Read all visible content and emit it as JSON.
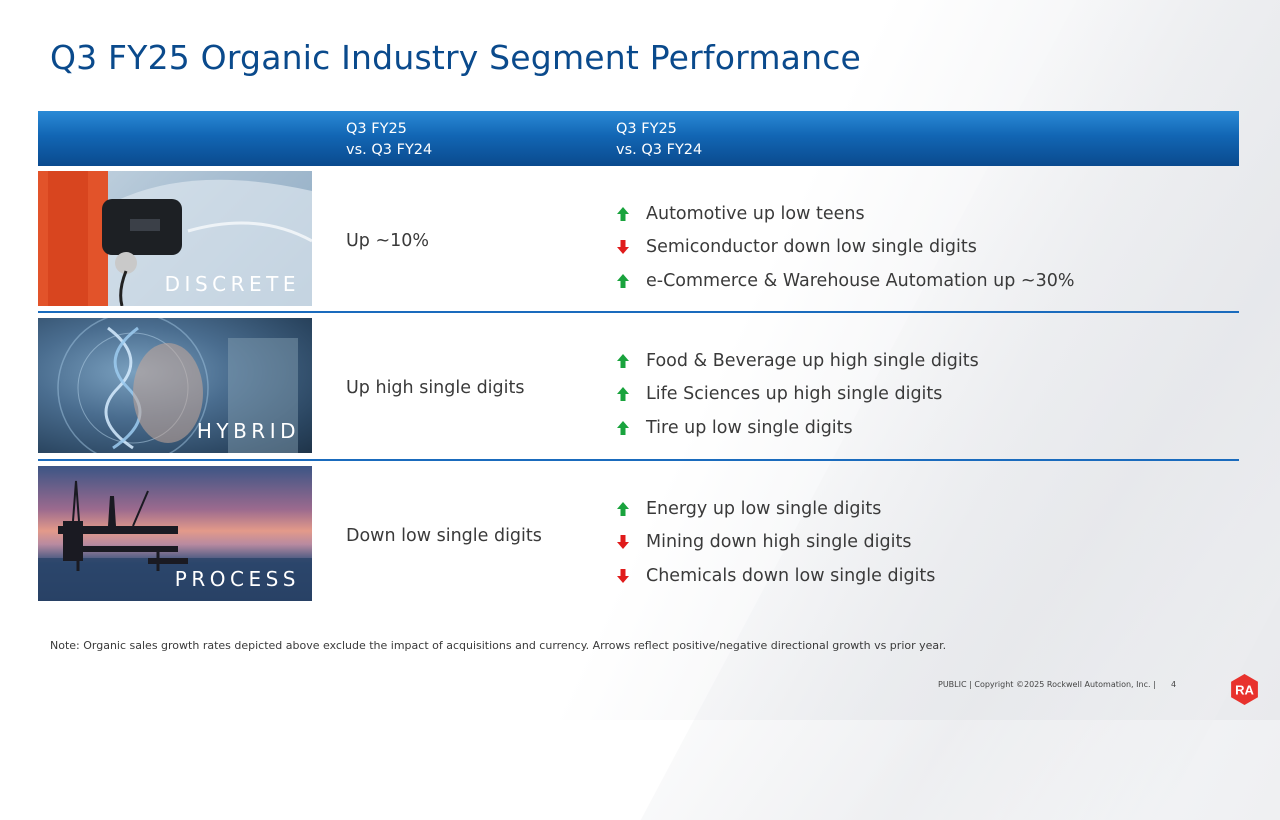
{
  "title": "Q3 FY25 Organic Industry Segment Performance",
  "header": {
    "col1_line1": "Q3 FY25",
    "col1_line2": "vs. Q3 FY24",
    "col2_line1": "Q3 FY25",
    "col2_line2": "vs. Q3 FY24"
  },
  "rows": [
    {
      "segment": "DISCRETE",
      "summary": "Up ~10%",
      "items": [
        {
          "direction": "up",
          "text": "Automotive up low teens"
        },
        {
          "direction": "down",
          "text": "Semiconductor down low single digits"
        },
        {
          "direction": "up",
          "text": "e-Commerce & Warehouse Automation up ~30%"
        }
      ]
    },
    {
      "segment": "HYBRID",
      "summary": "Up high single digits",
      "items": [
        {
          "direction": "up",
          "text": "Food & Beverage up high single digits"
        },
        {
          "direction": "up",
          "text": "Life Sciences up high single digits"
        },
        {
          "direction": "up",
          "text": "Tire up low single digits"
        }
      ]
    },
    {
      "segment": "PROCESS",
      "summary": "Down low single digits",
      "items": [
        {
          "direction": "up",
          "text": "Energy up low single digits"
        },
        {
          "direction": "down",
          "text": "Mining down high single digits"
        },
        {
          "direction": "down",
          "text": "Chemicals down low single digits"
        }
      ]
    }
  ],
  "note": "Note: Organic sales growth rates depicted above exclude the impact of acquisitions and currency.  Arrows reflect positive/negative directional growth vs prior year.",
  "footer": "PUBLIC | Copyright ©2025 Rockwell Automation, Inc. |",
  "page_number": "4",
  "logo_text": "RA",
  "colors": {
    "title": "#0a4a8c",
    "header_bar": "#1266b4",
    "divider": "#1a6bbd",
    "arrow_up": "#19a33d",
    "arrow_down": "#e01b1b",
    "logo": "#e8322d"
  }
}
